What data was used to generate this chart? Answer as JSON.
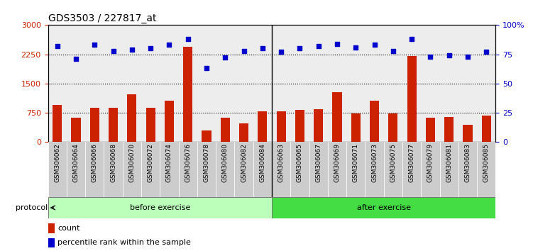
{
  "title": "GDS3503 / 227817_at",
  "samples": [
    "GSM306062",
    "GSM306064",
    "GSM306066",
    "GSM306068",
    "GSM306070",
    "GSM306072",
    "GSM306074",
    "GSM306076",
    "GSM306078",
    "GSM306080",
    "GSM306082",
    "GSM306084",
    "GSM306063",
    "GSM306065",
    "GSM306067",
    "GSM306069",
    "GSM306071",
    "GSM306073",
    "GSM306075",
    "GSM306077",
    "GSM306079",
    "GSM306081",
    "GSM306083",
    "GSM306085"
  ],
  "counts": [
    950,
    620,
    870,
    870,
    1230,
    870,
    1050,
    2450,
    300,
    620,
    480,
    790,
    790,
    820,
    830,
    1280,
    730,
    1050,
    730,
    2200,
    620,
    640,
    430,
    680
  ],
  "percentiles": [
    82,
    71,
    83,
    78,
    79,
    80,
    83,
    88,
    63,
    72,
    78,
    80,
    77,
    80,
    82,
    84,
    81,
    83,
    78,
    88,
    73,
    74,
    73,
    77
  ],
  "before_exercise_count": 12,
  "after_exercise_count": 12,
  "bar_color": "#cc2200",
  "dot_color": "#0000cc",
  "left_ylim": [
    0,
    3000
  ],
  "right_ylim": [
    0,
    100
  ],
  "left_yticks": [
    0,
    750,
    1500,
    2250,
    3000
  ],
  "right_yticks": [
    0,
    25,
    50,
    75,
    100
  ],
  "right_yticklabels": [
    "0",
    "25",
    "50",
    "75",
    "100%"
  ],
  "dotted_levels": [
    750,
    1500,
    2250
  ],
  "before_label": "before exercise",
  "after_label": "after exercise",
  "protocol_label": "protocol",
  "legend_count_label": "count",
  "legend_pct_label": "percentile rank within the sample",
  "before_color": "#bbffbb",
  "after_color": "#44dd44",
  "tick_bg_color": "#cccccc"
}
